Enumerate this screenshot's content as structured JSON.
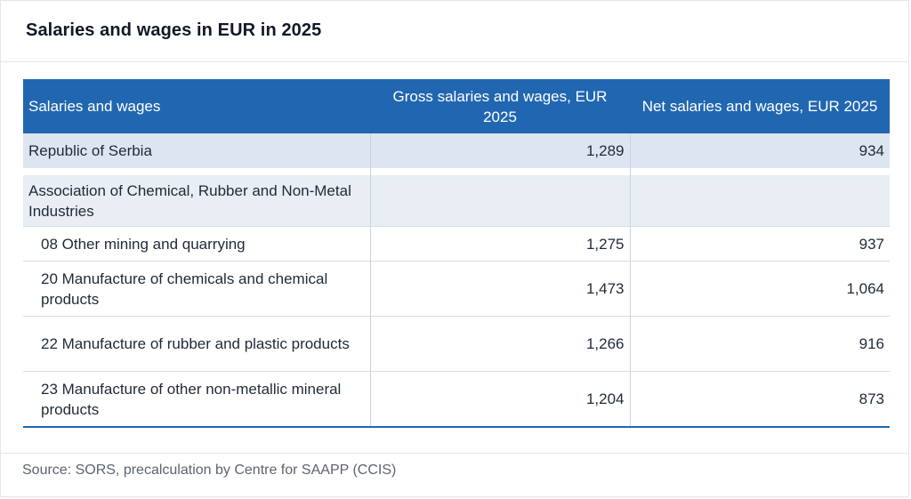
{
  "title": "Salaries and wages in EUR in 2025",
  "table": {
    "headers": [
      "Salaries and wages",
      "Gross salaries and wages, EUR 2025",
      "Net salaries and wages, EUR 2025"
    ],
    "serbia": {
      "label": "Republic of Serbia",
      "gross": "1,289",
      "net": "934"
    },
    "association": {
      "label": "Association of Chemical, Rubber and Non-Metal Industries"
    },
    "rows": [
      {
        "label": "08 Other mining and quarrying",
        "gross": "1,275",
        "net": "937"
      },
      {
        "label": "20 Manufacture of chemicals and chemical products",
        "gross": "1,473",
        "net": "1,064"
      },
      {
        "label": "22 Manufacture of rubber and plastic products",
        "gross": "1,266",
        "net": "916"
      },
      {
        "label": "23 Manufacture of other non-metallic mineral products",
        "gross": "1,204",
        "net": "873"
      }
    ]
  },
  "source": "Source: SORS, precalculation by Centre for SAAPP (CCIS)",
  "colors": {
    "header_bg": "#2166b0",
    "serbia_bg": "#dde6f0",
    "assoc_bg": "#e9eef5"
  }
}
